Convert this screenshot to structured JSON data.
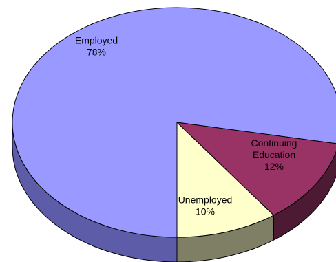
{
  "chart_data": {
    "type": "pie",
    "style": "3d",
    "slices": [
      {
        "label_lines": [
          "Employed"
        ],
        "value_label": "78%",
        "value": 78,
        "color": "#9999ff",
        "side_color": "#5c5ca8"
      },
      {
        "label_lines": [
          "Continuing",
          "Education"
        ],
        "value_label": "12%",
        "value": 12,
        "color": "#993366",
        "side_color": "#4d1a33"
      },
      {
        "label_lines": [
          "Unemployed"
        ],
        "value_label": "10%",
        "value": 10,
        "color": "#ffffcc",
        "side_color": "#7f7f66"
      }
    ],
    "outline_color": "#000000",
    "background": "#ffffff"
  }
}
